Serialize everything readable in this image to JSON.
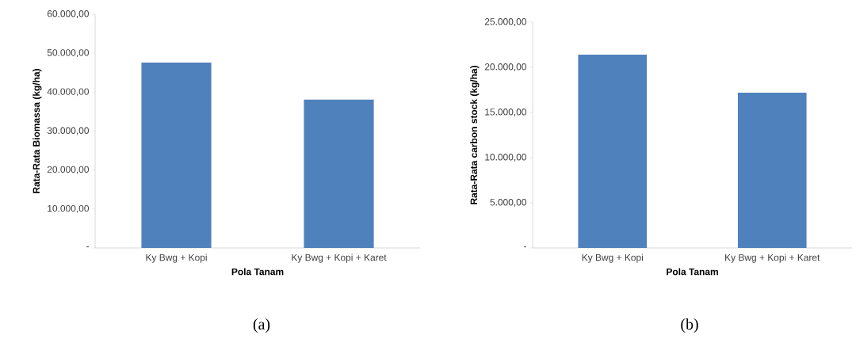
{
  "chart_data": [
    {
      "type": "bar",
      "categories": [
        "Ky Bwg + Kopi",
        "Ky Bwg + Kopi + Karet"
      ],
      "values": [
        47600,
        38100
      ],
      "color": "#4f81bd",
      "xlabel": "Pola Tanam",
      "ylabel": "Rata-Rata Biomassa (kg/ha)",
      "ylim": [
        0,
        60000
      ],
      "yticks": [
        {
          "value": 0,
          "label": "-"
        },
        {
          "value": 10000,
          "label": "10.000,00"
        },
        {
          "value": 20000,
          "label": "20.000,00"
        },
        {
          "value": 30000,
          "label": "30.000,00"
        },
        {
          "value": 40000,
          "label": "40.000,00"
        },
        {
          "value": 50000,
          "label": "50.000,00"
        },
        {
          "value": 60000,
          "label": "60.000,00"
        }
      ],
      "annotations": [
        "(a)"
      ]
    },
    {
      "type": "bar",
      "categories": [
        "Ky Bwg + Kopi",
        "Ky Bwg + Kopi + Karet"
      ],
      "values": [
        21400,
        17200
      ],
      "color": "#4f81bd",
      "xlabel": "Pola Tanam",
      "ylabel": "Rata-Rata carbon stock (kg/ha)",
      "ylim": [
        0,
        25000
      ],
      "yticks": [
        {
          "value": 0,
          "label": "-"
        },
        {
          "value": 5000,
          "label": "5.000,00"
        },
        {
          "value": 10000,
          "label": "10.000,00"
        },
        {
          "value": 15000,
          "label": "15.000,00"
        },
        {
          "value": 20000,
          "label": "20.000,00"
        },
        {
          "value": 25000,
          "label": "25.000,00"
        }
      ],
      "annotations": [
        "(b)"
      ]
    }
  ]
}
